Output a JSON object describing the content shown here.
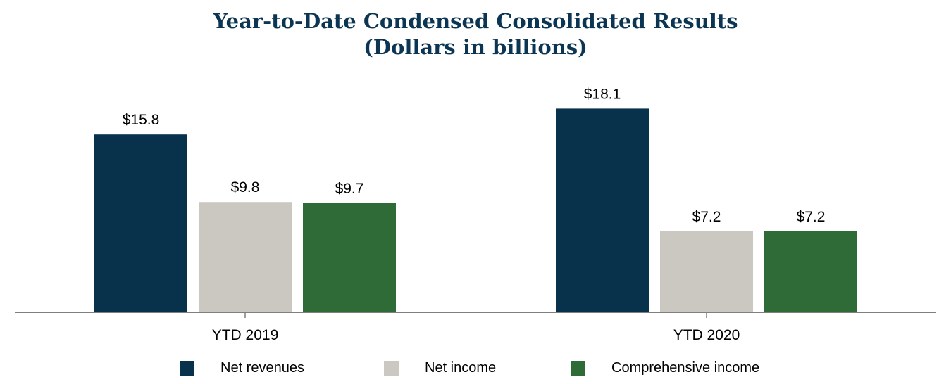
{
  "colors": {
    "title": "#0b3552",
    "net_revenues": "#08324c",
    "net_income": "#cbc8c2",
    "comprehensive_income": "#2e6b37",
    "axis": "#7f7f7f"
  },
  "chart_data": {
    "type": "bar",
    "title": "Year-to-Date Condensed Consolidated Results",
    "subtitle": "(Dollars in billions)",
    "categories": [
      "YTD 2019",
      "YTD 2020"
    ],
    "series": [
      {
        "name": "Net revenues",
        "values": [
          15.8,
          18.1
        ],
        "labels": [
          "$15.8",
          "$18.1"
        ],
        "color": "#08324c"
      },
      {
        "name": "Net income",
        "values": [
          9.8,
          7.2
        ],
        "labels": [
          "$9.8",
          "$7.2"
        ],
        "color": "#cbc8c2"
      },
      {
        "name": "Comprehensive income",
        "values": [
          9.7,
          7.2
        ],
        "labels": [
          "$9.7",
          "$7.2"
        ],
        "color": "#2e6b37"
      }
    ],
    "ylim": [
      0,
      20
    ],
    "grid": false,
    "legend_position": "bottom"
  }
}
